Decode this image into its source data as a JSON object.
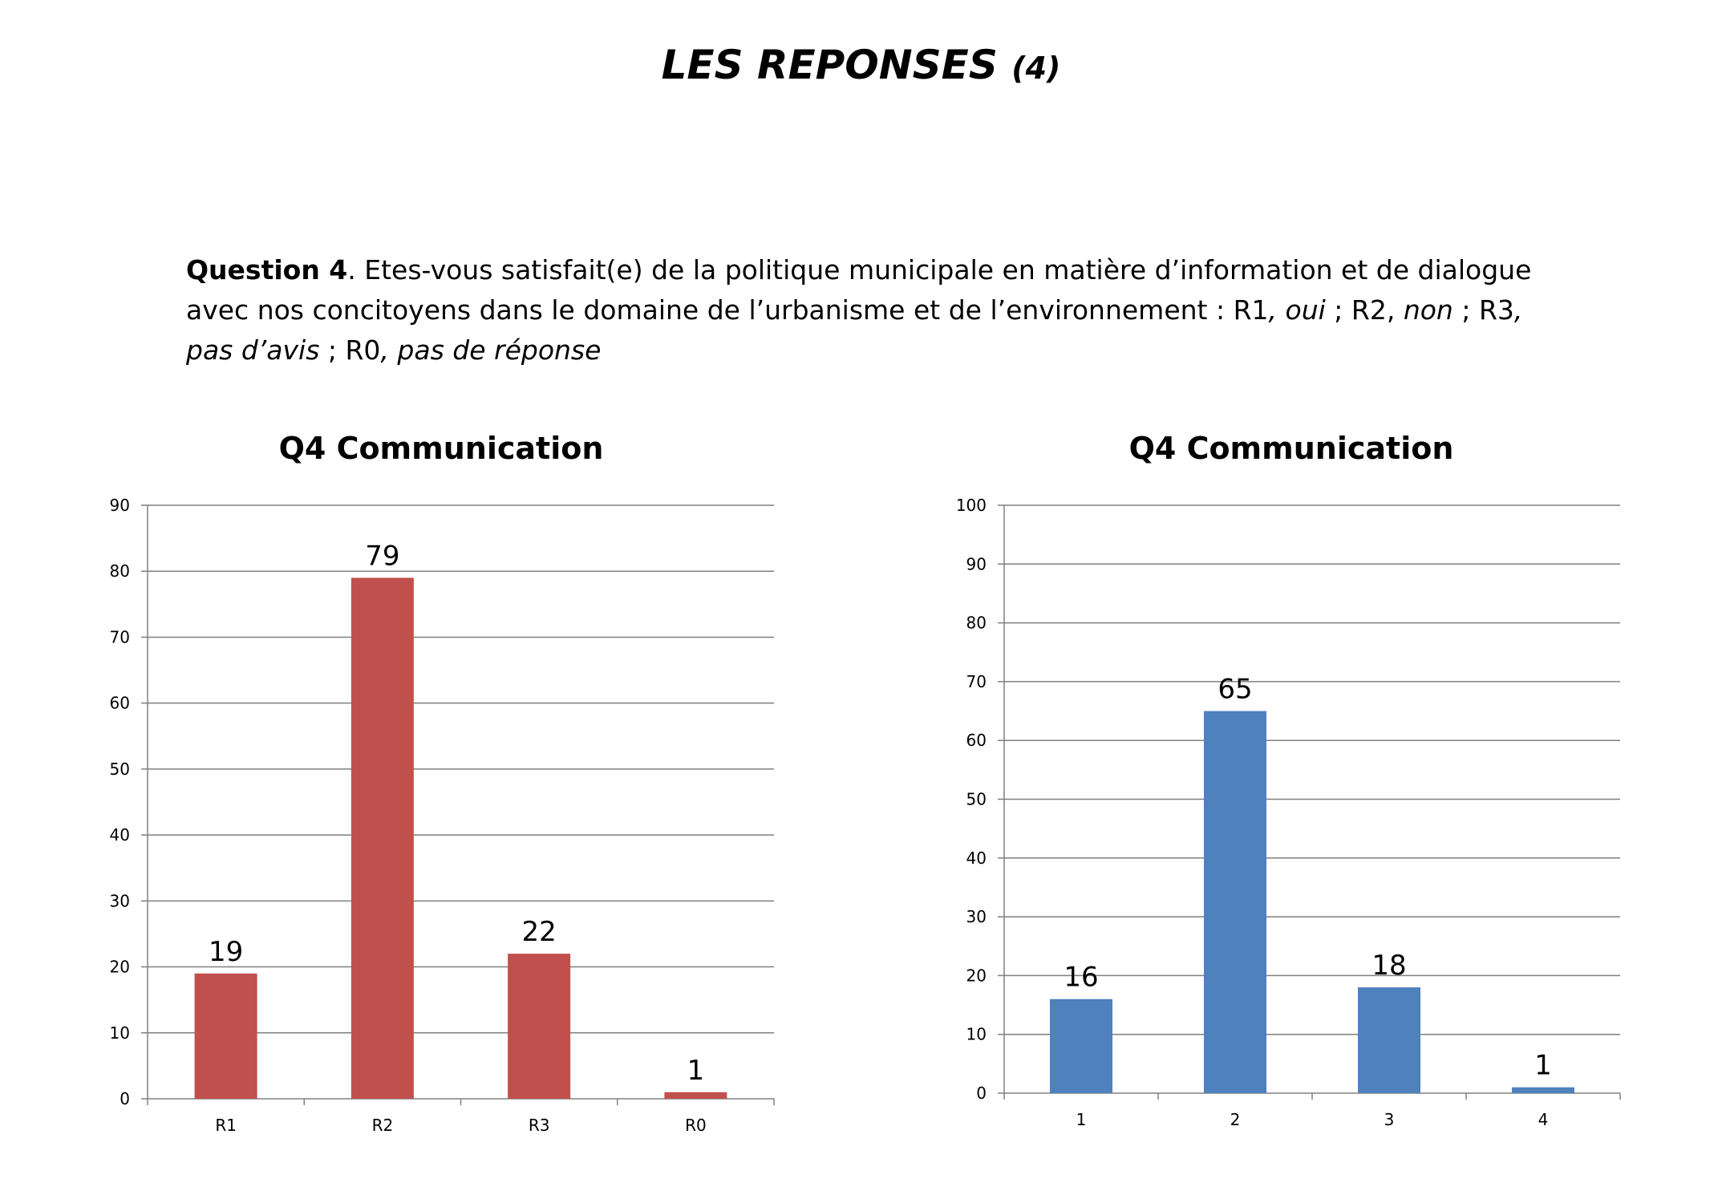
{
  "header": {
    "title": "LES REPONSES",
    "title_suffix": "(4)"
  },
  "question": {
    "label": "Question 4",
    "text": ". Etes-vous satisfait(e) de la politique municipale en matière d’information et de dialogue avec nos concitoyens dans le domaine de l’urbanisme et de l’environnement :",
    "opt1_code": "R1",
    "opt1_text": ", oui",
    "opt2_code": " ; R2, ",
    "opt2_text": "non",
    "opt3_code": " ; R3",
    "opt3_text": ", pas d’avis",
    "opt4_code": " ; R0",
    "opt4_text": ", pas de réponse"
  },
  "chart_data": [
    {
      "type": "bar",
      "title": "Q4 Communication",
      "categories": [
        "R1",
        "R2",
        "R3",
        "R0"
      ],
      "values": [
        19,
        79,
        22,
        1
      ],
      "ylim": [
        0,
        90
      ],
      "ytick_step": 10,
      "grid": true,
      "data_labels": true,
      "color": "#C0504D"
    },
    {
      "type": "bar",
      "title": "Q4 Communication",
      "categories": [
        "1",
        "2",
        "3",
        "4"
      ],
      "values": [
        16,
        65,
        18,
        1
      ],
      "ylim": [
        0,
        100
      ],
      "ytick_step": 10,
      "grid": true,
      "data_labels": true,
      "color": "#4F81BD"
    }
  ]
}
